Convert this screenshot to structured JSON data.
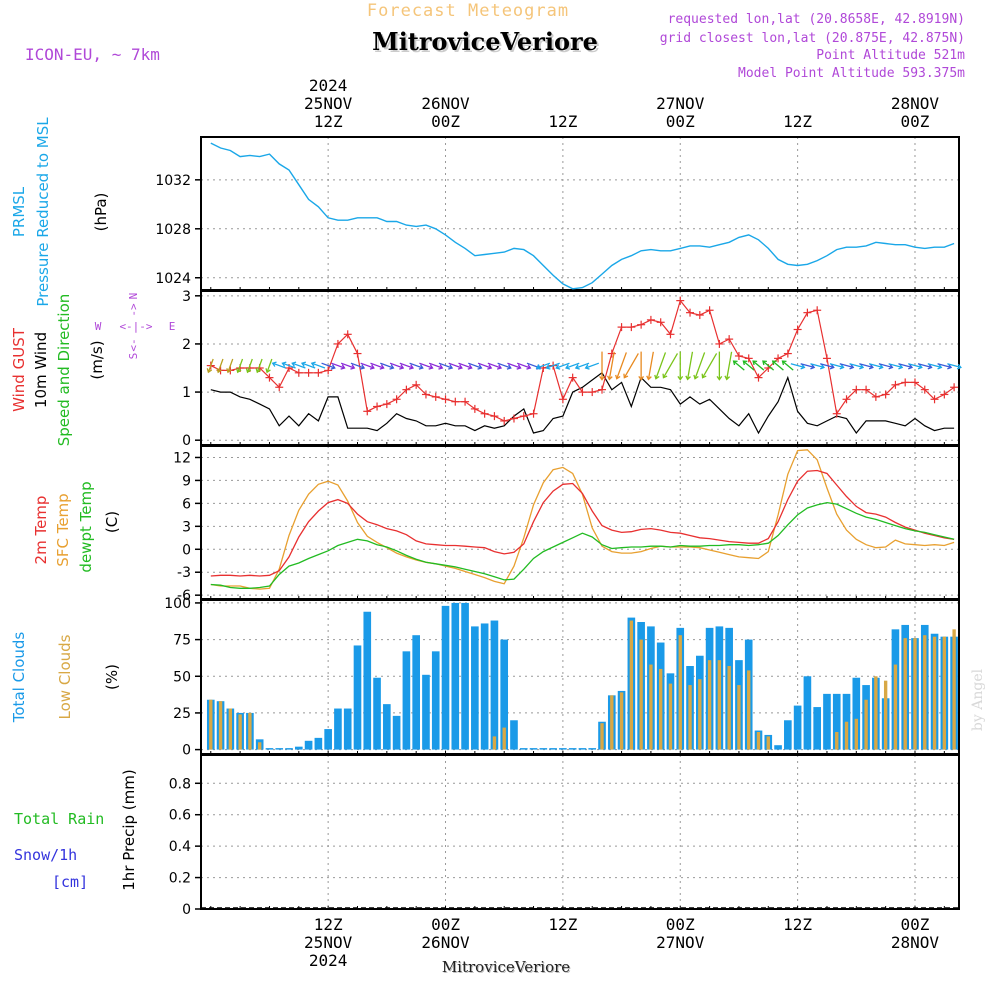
{
  "header": {
    "title": "Forecast Meteogram",
    "location": "MitroviceVeriore",
    "model": "ICON-EU, ~ 7km",
    "requested": "requested lon,lat (20.8658E, 42.8919N)",
    "closest": "grid closest lon,lat (20.875E, 42.875N)",
    "point_altitude": "Point Altitude 521m",
    "model_altitude": "Model Point Altitude 593.375m",
    "watermark": "by Angel",
    "footer_location": "MitroviceVeriore"
  },
  "colors": {
    "title": "#f5c57a",
    "purple": "#b048d8",
    "pressure": "#1aa7e8",
    "gust": "#e83030",
    "wind": "#000000",
    "wind_green": "#22bb22",
    "temp2m": "#e83030",
    "sfc": "#e8a030",
    "dewpt": "#22bb22",
    "total_clouds": "#1a9ae8",
    "low_clouds": "#d8a845",
    "rain": "#22bb22",
    "snow": "#3333dd"
  },
  "time_axis": {
    "top_ticks": [
      {
        "h": 12,
        "lines": [
          "2024",
          "25NOV",
          "12Z"
        ]
      },
      {
        "h": 24,
        "lines": [
          "26NOV",
          "00Z"
        ]
      },
      {
        "h": 36,
        "lines": [
          "12Z"
        ]
      },
      {
        "h": 48,
        "lines": [
          "27NOV",
          "00Z"
        ]
      },
      {
        "h": 60,
        "lines": [
          "12Z"
        ]
      },
      {
        "h": 72,
        "lines": [
          "28NOV",
          "00Z"
        ]
      }
    ],
    "bottom_ticks": [
      {
        "h": 12,
        "lines": [
          "12Z",
          "25NOV",
          "2024"
        ]
      },
      {
        "h": 24,
        "lines": [
          "00Z",
          "26NOV"
        ]
      },
      {
        "h": 36,
        "lines": [
          "12Z"
        ]
      },
      {
        "h": 48,
        "lines": [
          "00Z",
          "27NOV"
        ]
      },
      {
        "h": 60,
        "lines": [
          "12Z"
        ]
      },
      {
        "h": 72,
        "lines": [
          "00Z",
          "28NOV"
        ]
      }
    ]
  },
  "panel_labels": {
    "pressure": {
      "l1": "PRMSL",
      "l2": "Pressure Reduced to MSL",
      "unit": "(hPa)"
    },
    "wind": {
      "l1": "Wind GUST",
      "l2": "10m Wind",
      "l3": "Speed and Direction",
      "unit": "(m/s)",
      "compass": {
        "n": "N",
        "s": "S",
        "w": "W",
        "e": "E",
        "hline": "<-|->"
      }
    },
    "temp": {
      "l1": "2m Temp",
      "l2": "SFC Temp",
      "l3": "dewpt Temp",
      "unit": "(C)"
    },
    "clouds": {
      "l1": "Total Clouds",
      "l2": "Low Clouds",
      "unit": "(%)"
    },
    "precip": {
      "rain": "Total  Rain",
      "snow": "Snow/1h",
      "cm": "[cm]",
      "unit": "1hr Precip (mm)"
    }
  },
  "chart_data": [
    {
      "type": "line",
      "name": "PRMSL",
      "ylabel": "(hPa)",
      "yticks": [
        1024,
        1028,
        1032
      ],
      "ylim": [
        1023,
        1035.5
      ],
      "x": [
        0,
        1,
        2,
        3,
        4,
        5,
        6,
        7,
        8,
        9,
        10,
        11,
        12,
        13,
        14,
        15,
        16,
        17,
        18,
        19,
        20,
        21,
        22,
        23,
        24,
        25,
        26,
        27,
        28,
        29,
        30,
        31,
        32,
        33,
        34,
        35,
        36,
        37,
        38,
        39,
        40,
        41,
        42,
        43,
        44,
        45,
        46,
        47,
        48,
        49,
        50,
        51,
        52,
        53,
        54,
        55,
        56,
        57,
        58,
        59,
        60,
        61,
        62,
        63,
        64,
        65,
        66,
        67,
        68,
        69,
        70,
        71,
        72,
        73,
        74,
        75,
        76
      ],
      "values": [
        1035.0,
        1034.6,
        1034.4,
        1033.9,
        1034.0,
        1033.9,
        1034.1,
        1033.3,
        1032.8,
        1031.6,
        1030.4,
        1029.8,
        1028.9,
        1028.7,
        1028.7,
        1028.9,
        1028.9,
        1028.9,
        1028.6,
        1028.6,
        1028.3,
        1028.2,
        1028.3,
        1028.0,
        1027.5,
        1026.9,
        1026.4,
        1025.8,
        1025.9,
        1026.0,
        1026.1,
        1026.4,
        1026.3,
        1025.8,
        1025.0,
        1024.2,
        1023.5,
        1023.1,
        1023.2,
        1023.6,
        1024.3,
        1025.0,
        1025.5,
        1025.8,
        1026.2,
        1026.3,
        1026.2,
        1026.2,
        1026.4,
        1026.6,
        1026.6,
        1026.5,
        1026.7,
        1026.9,
        1027.3,
        1027.5,
        1027.1,
        1026.4,
        1025.5,
        1025.1,
        1025.0,
        1025.1,
        1025.4,
        1025.8,
        1026.3,
        1026.5,
        1026.5,
        1026.6,
        1026.9,
        1026.8,
        1026.7,
        1026.7,
        1026.5,
        1026.4,
        1026.5,
        1026.5,
        1026.8
      ],
      "color": "#1aa7e8"
    },
    {
      "type": "line",
      "name": "Wind GUST / 10m Wind",
      "ylabel": "(m/s)",
      "yticks": [
        0,
        1,
        2,
        3
      ],
      "ylim": [
        -0.1,
        3.1
      ],
      "x": [
        0,
        1,
        2,
        3,
        4,
        5,
        6,
        7,
        8,
        9,
        10,
        11,
        12,
        13,
        14,
        15,
        16,
        17,
        18,
        19,
        20,
        21,
        22,
        23,
        24,
        25,
        26,
        27,
        28,
        29,
        30,
        31,
        32,
        33,
        34,
        35,
        36,
        37,
        38,
        39,
        40,
        41,
        42,
        43,
        44,
        45,
        46,
        47,
        48,
        49,
        50,
        51,
        52,
        53,
        54,
        55,
        56,
        57,
        58,
        59,
        60,
        61,
        62,
        63,
        64,
        65,
        66,
        67,
        68,
        69,
        70,
        71,
        72,
        73,
        74,
        75,
        76
      ],
      "series": [
        {
          "name": "Wind GUST",
          "color": "#e83030",
          "values": [
            1.55,
            1.45,
            1.45,
            1.5,
            1.5,
            1.5,
            1.3,
            1.1,
            1.5,
            1.4,
            1.4,
            1.4,
            1.45,
            2.0,
            2.2,
            1.8,
            0.6,
            0.7,
            0.75,
            0.85,
            1.05,
            1.15,
            0.95,
            0.9,
            0.85,
            0.8,
            0.8,
            0.65,
            0.55,
            0.5,
            0.4,
            0.45,
            0.5,
            0.55,
            1.5,
            1.55,
            0.85,
            1.3,
            1.0,
            1.0,
            1.05,
            1.8,
            2.35,
            2.35,
            2.4,
            2.5,
            2.45,
            2.2,
            2.9,
            2.65,
            2.6,
            2.7,
            2.0,
            2.1,
            1.75,
            1.7,
            1.3,
            1.5,
            1.7,
            1.8,
            2.3,
            2.65,
            2.7,
            1.7,
            0.55,
            0.85,
            1.05,
            1.05,
            0.9,
            0.95,
            1.15,
            1.2,
            1.2,
            1.05,
            0.85,
            0.95,
            1.1
          ]
        },
        {
          "name": "10m Wind",
          "color": "#000000",
          "values": [
            1.05,
            1.0,
            1.0,
            0.9,
            0.85,
            0.75,
            0.65,
            0.3,
            0.5,
            0.3,
            0.55,
            0.4,
            0.9,
            0.9,
            0.25,
            0.25,
            0.25,
            0.2,
            0.35,
            0.55,
            0.45,
            0.4,
            0.3,
            0.3,
            0.35,
            0.3,
            0.3,
            0.2,
            0.3,
            0.25,
            0.3,
            0.5,
            0.65,
            0.15,
            0.2,
            0.45,
            0.5,
            1.0,
            1.1,
            1.25,
            1.4,
            1.05,
            1.2,
            0.7,
            1.3,
            1.1,
            1.1,
            1.05,
            0.75,
            0.9,
            0.75,
            0.85,
            0.65,
            0.45,
            0.3,
            0.55,
            0.15,
            0.5,
            0.8,
            1.3,
            0.6,
            0.35,
            0.3,
            0.4,
            0.5,
            0.45,
            0.15,
            0.4,
            0.4,
            0.4,
            0.35,
            0.3,
            0.45,
            0.3,
            0.2,
            0.25,
            0.25
          ]
        }
      ]
    },
    {
      "type": "line",
      "name": "Temperatures",
      "ylabel": "(C)",
      "yticks": [
        -6,
        -3,
        0,
        3,
        6,
        9,
        12
      ],
      "ylim": [
        -6.5,
        13.5
      ],
      "x": [
        0,
        1,
        2,
        3,
        4,
        5,
        6,
        7,
        8,
        9,
        10,
        11,
        12,
        13,
        14,
        15,
        16,
        17,
        18,
        19,
        20,
        21,
        22,
        23,
        24,
        25,
        26,
        27,
        28,
        29,
        30,
        31,
        32,
        33,
        34,
        35,
        36,
        37,
        38,
        39,
        40,
        41,
        42,
        43,
        44,
        45,
        46,
        47,
        48,
        49,
        50,
        51,
        52,
        53,
        54,
        55,
        56,
        57,
        58,
        59,
        60,
        61,
        62,
        63,
        64,
        65,
        66,
        67,
        68,
        69,
        70,
        71,
        72,
        73,
        74,
        75,
        76
      ],
      "series": [
        {
          "name": "2m Temp",
          "color": "#e83030",
          "values": [
            -3.5,
            -3.4,
            -3.4,
            -3.5,
            -3.4,
            -3.5,
            -3.4,
            -2.8,
            -1.0,
            1.6,
            3.6,
            5.0,
            6.1,
            6.5,
            6.0,
            4.6,
            3.6,
            3.2,
            2.7,
            2.4,
            1.9,
            1.1,
            0.7,
            0.6,
            0.5,
            0.5,
            0.4,
            0.3,
            0.2,
            -0.3,
            -0.6,
            -0.4,
            0.7,
            3.6,
            6.1,
            7.6,
            8.5,
            8.6,
            7.3,
            5.0,
            3.1,
            2.5,
            2.2,
            2.3,
            2.6,
            2.7,
            2.5,
            2.2,
            2.1,
            1.8,
            1.5,
            1.4,
            1.2,
            1.0,
            0.9,
            0.8,
            0.8,
            1.4,
            3.6,
            6.5,
            8.9,
            10.2,
            10.3,
            9.9,
            8.4,
            6.9,
            5.6,
            4.8,
            4.6,
            4.2,
            3.5,
            2.9,
            2.5,
            2.1,
            1.8,
            1.5,
            1.3
          ]
        },
        {
          "name": "SFC Temp",
          "color": "#e8a030",
          "values": [
            -4.6,
            -4.8,
            -4.8,
            -4.8,
            -5.1,
            -5.2,
            -5.1,
            -2.6,
            1.8,
            5.1,
            7.2,
            8.5,
            8.9,
            8.4,
            6.3,
            3.5,
            1.7,
            0.9,
            0.2,
            -0.5,
            -1.0,
            -1.4,
            -1.7,
            -1.9,
            -2.2,
            -2.5,
            -2.9,
            -3.3,
            -3.7,
            -4.2,
            -4.5,
            -2.2,
            1.5,
            5.8,
            8.7,
            10.4,
            10.7,
            9.9,
            7.2,
            2.8,
            0.4,
            -0.3,
            -0.5,
            -0.5,
            -0.3,
            0.1,
            0.4,
            0.3,
            0.3,
            0.3,
            0.2,
            -0.1,
            -0.4,
            -0.7,
            -1.0,
            -1.1,
            -1.2,
            -0.3,
            4.5,
            9.8,
            12.9,
            13.0,
            11.7,
            8.0,
            4.6,
            2.5,
            1.3,
            0.6,
            0.2,
            0.3,
            1.2,
            0.7,
            0.6,
            0.5,
            0.6,
            0.5,
            0.9
          ]
        },
        {
          "name": "dewpt Temp",
          "color": "#22bb22",
          "values": [
            -4.6,
            -4.7,
            -5.0,
            -5.1,
            -5.1,
            -5.0,
            -4.8,
            -3.3,
            -2.2,
            -1.8,
            -1.2,
            -0.7,
            -0.2,
            0.5,
            0.9,
            1.3,
            1.1,
            0.6,
            0.3,
            -0.2,
            -0.8,
            -1.3,
            -1.7,
            -1.9,
            -2.1,
            -2.3,
            -2.6,
            -2.9,
            -3.2,
            -3.6,
            -4.0,
            -3.9,
            -2.6,
            -1.2,
            -0.3,
            0.3,
            0.9,
            1.5,
            2.1,
            1.6,
            0.6,
            0.1,
            0.2,
            0.3,
            0.3,
            0.4,
            0.4,
            0.3,
            0.5,
            0.4,
            0.4,
            0.5,
            0.5,
            0.6,
            0.6,
            0.5,
            0.6,
            0.8,
            1.8,
            3.2,
            4.5,
            5.4,
            5.8,
            6.1,
            5.9,
            5.3,
            4.7,
            4.2,
            3.9,
            3.5,
            3.1,
            2.7,
            2.4,
            2.2,
            1.9,
            1.6,
            1.3
          ]
        }
      ]
    },
    {
      "type": "bar",
      "name": "Clouds",
      "ylabel": "(%)",
      "yticks": [
        0,
        25,
        50,
        75,
        100
      ],
      "ylim": [
        -3,
        102
      ],
      "x": [
        0,
        1,
        2,
        3,
        4,
        5,
        6,
        7,
        8,
        9,
        10,
        11,
        12,
        13,
        14,
        15,
        16,
        17,
        18,
        19,
        20,
        21,
        22,
        23,
        24,
        25,
        26,
        27,
        28,
        29,
        30,
        31,
        32,
        33,
        34,
        35,
        36,
        37,
        38,
        39,
        40,
        41,
        42,
        43,
        44,
        45,
        46,
        47,
        48,
        49,
        50,
        51,
        52,
        53,
        54,
        55,
        56,
        57,
        58,
        59,
        60,
        61,
        62,
        63,
        64,
        65,
        66,
        67,
        68,
        69,
        70,
        71,
        72,
        73,
        74,
        75,
        76
      ],
      "series": [
        {
          "name": "Total Clouds",
          "color": "#1a9ae8",
          "values": [
            34,
            33,
            28,
            25,
            25,
            7,
            0,
            1,
            0,
            2,
            6,
            8,
            14,
            28,
            28,
            71,
            94,
            49,
            31,
            23,
            67,
            78,
            51,
            67,
            98,
            100,
            100,
            84,
            86,
            88,
            75,
            20,
            0,
            0,
            0,
            0,
            0,
            0,
            0,
            0,
            19,
            37,
            40,
            90,
            87,
            84,
            73,
            52,
            83,
            57,
            64,
            83,
            84,
            83,
            61,
            75,
            13,
            10,
            3,
            20,
            30,
            50,
            29,
            38,
            38,
            38,
            49,
            44,
            49,
            35,
            82,
            85,
            76,
            85,
            79,
            77,
            77
          ]
        },
        {
          "name": "Low Clouds",
          "color": "#d8a845",
          "values": [
            34,
            33,
            28,
            24,
            25,
            5,
            0,
            0,
            0,
            0,
            0,
            0,
            0,
            0,
            0,
            0,
            0,
            0,
            0,
            0,
            0,
            0,
            0,
            0,
            0,
            0,
            0,
            0,
            0,
            9,
            15,
            0,
            0,
            0,
            0,
            0,
            0,
            0,
            0,
            0,
            18,
            37,
            39,
            88,
            75,
            58,
            55,
            45,
            78,
            44,
            48,
            61,
            61,
            57,
            44,
            54,
            12,
            9,
            0,
            0,
            0,
            0,
            0,
            0,
            12,
            19,
            21,
            34,
            50,
            47,
            58,
            76,
            76,
            78,
            77,
            77,
            82
          ]
        }
      ]
    },
    {
      "type": "bar",
      "name": "1hr Precip",
      "ylabel": "1hr Precip (mm)",
      "yticks": [
        0,
        0.2,
        0.4,
        0.6,
        0.8
      ],
      "ylim": [
        0,
        0.98
      ],
      "series": [
        {
          "name": "Total Rain",
          "values": []
        },
        {
          "name": "Snow/1h",
          "values": []
        }
      ]
    }
  ]
}
